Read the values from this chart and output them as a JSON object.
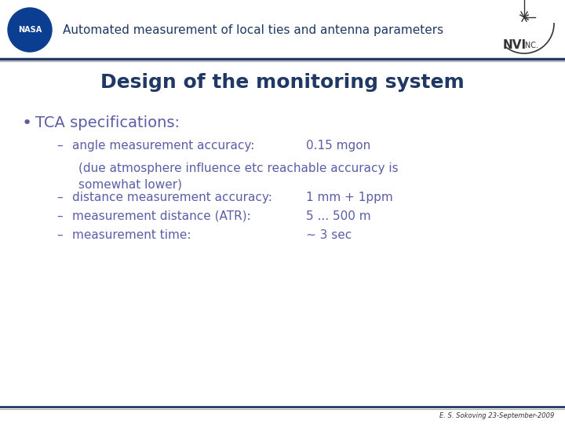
{
  "title": "Design of the monitoring system",
  "header_text": "Automated measurement of local ties and antenna parameters",
  "footer_text": "E. S. Sokoving 23-September-2009",
  "bullet_main": "TCA specifications:",
  "bg_color": "#ffffff",
  "header_bg": "#ffffff",
  "header_line_color1": "#1f3864",
  "header_line_color2": "#888888",
  "title_color": "#1f3864",
  "body_color": "#5b5ea6",
  "bullet_color": "#5b5ea6",
  "header_title_color": "#1f3864",
  "footer_line_color": "#1f3864",
  "items": [
    {
      "label": "angle measurement accuracy:",
      "value": "0.15 mgon",
      "type": "dash"
    },
    {
      "label": "(due atmosphere influence etc reachable accuracy is\nsomewhat lower)",
      "value": "",
      "type": "cont"
    },
    {
      "label": "distance measurement accuracy:",
      "value": "1 mm + 1ppm",
      "type": "dash"
    },
    {
      "label": "measurement distance (ATR):",
      "value": "5 ... 500 m",
      "type": "dash"
    },
    {
      "label": "measurement time:",
      "value": "~ 3 sec",
      "type": "dash"
    }
  ]
}
